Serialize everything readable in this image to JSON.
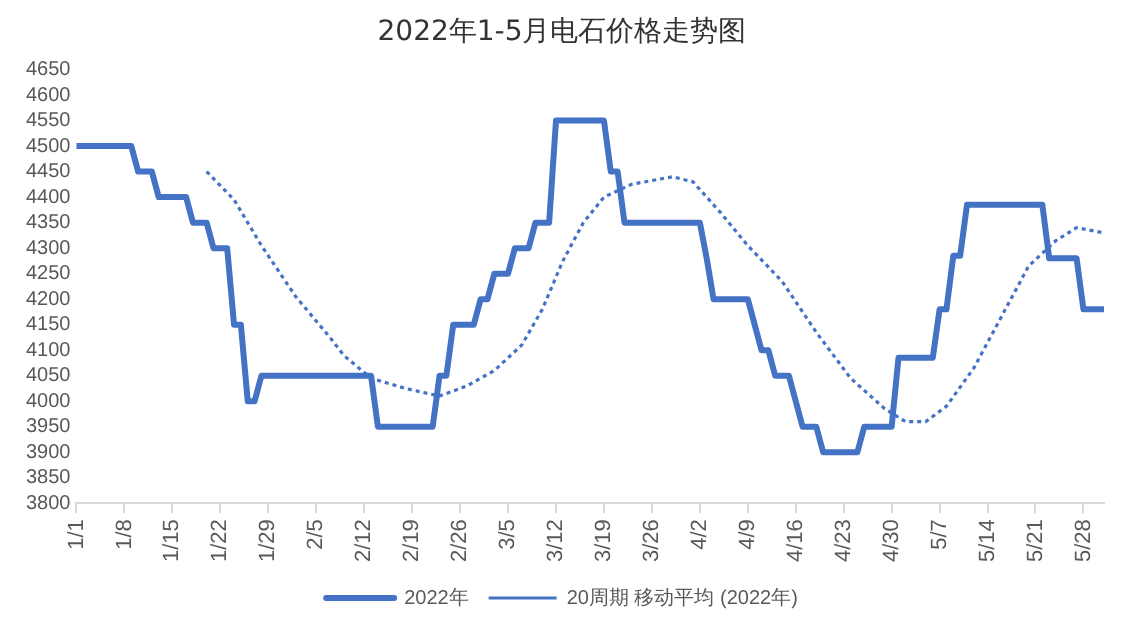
{
  "chart_data": {
    "type": "line",
    "title": "2022年1-5月电石价格走势图",
    "categories": [
      "1/1",
      null,
      null,
      null,
      null,
      null,
      null,
      "1/8",
      null,
      null,
      null,
      null,
      null,
      null,
      "1/15",
      null,
      null,
      null,
      null,
      null,
      null,
      "1/22",
      null,
      null,
      null,
      null,
      null,
      null,
      "1/29",
      null,
      null,
      null,
      null,
      null,
      null,
      "2/5",
      null,
      null,
      null,
      null,
      null,
      null,
      "2/12",
      null,
      null,
      null,
      null,
      null,
      null,
      "2/19",
      null,
      null,
      null,
      null,
      null,
      null,
      "2/26",
      null,
      null,
      null,
      null,
      null,
      null,
      "3/5",
      null,
      null,
      null,
      null,
      null,
      null,
      "3/12",
      null,
      null,
      null,
      null,
      null,
      null,
      "3/19",
      null,
      null,
      null,
      null,
      null,
      null,
      "3/26",
      null,
      null,
      null,
      null,
      null,
      null,
      "4/2",
      null,
      null,
      null,
      null,
      null,
      null,
      "4/9",
      null,
      null,
      null,
      null,
      null,
      null,
      "4/16",
      null,
      null,
      null,
      null,
      null,
      null,
      "4/23",
      null,
      null,
      null,
      null,
      null,
      null,
      "4/30",
      null,
      null,
      null,
      null,
      null,
      null,
      "5/7",
      null,
      null,
      null,
      null,
      null,
      null,
      "5/14",
      null,
      null,
      null,
      null,
      null,
      null,
      "5/21",
      null,
      null,
      null,
      null,
      null,
      null,
      "5/28",
      null,
      null,
      null
    ],
    "series": [
      {
        "name": "2022年",
        "color": "#4472c4",
        "line_style": "solid",
        "values": [
          4500,
          4500,
          4500,
          4500,
          4500,
          4500,
          4500,
          4500,
          4500,
          4450,
          4450,
          4450,
          4400,
          4400,
          4400,
          4400,
          4400,
          4350,
          4350,
          4350,
          4300,
          4300,
          4300,
          4150,
          4150,
          4000,
          4000,
          4050,
          4050,
          4050,
          4050,
          4050,
          4050,
          4050,
          4050,
          4050,
          4050,
          4050,
          4050,
          4050,
          4050,
          4050,
          4050,
          4050,
          3950,
          3950,
          3950,
          3950,
          3950,
          3950,
          3950,
          3950,
          3950,
          4050,
          4050,
          4150,
          4150,
          4150,
          4150,
          4200,
          4200,
          4250,
          4250,
          4250,
          4300,
          4300,
          4300,
          4350,
          4350,
          4350,
          4550,
          4550,
          4550,
          4550,
          4550,
          4550,
          4550,
          4550,
          4450,
          4450,
          4350,
          4350,
          4350,
          4350,
          4350,
          4350,
          4350,
          4350,
          4350,
          4350,
          4350,
          4350,
          4280,
          4200,
          4200,
          4200,
          4200,
          4200,
          4200,
          4150,
          4100,
          4100,
          4050,
          4050,
          4050,
          4000,
          3950,
          3950,
          3950,
          3900,
          3900,
          3900,
          3900,
          3900,
          3900,
          3950,
          3950,
          3950,
          3950,
          3950,
          4085,
          4085,
          4085,
          4085,
          4085,
          4085,
          4180,
          4180,
          4285,
          4285,
          4385,
          4385,
          4385,
          4385,
          4385,
          4385,
          4385,
          4385,
          4385,
          4385,
          4385,
          4385,
          4280,
          4280,
          4280,
          4280,
          4280,
          4180,
          4180,
          4180,
          4180
        ]
      },
      {
        "name": "20周期 移动平均 (2022年)",
        "color": "#4472c4",
        "line_style": "dotted",
        "values": [
          null,
          null,
          null,
          null,
          null,
          null,
          null,
          null,
          null,
          null,
          null,
          null,
          null,
          null,
          null,
          null,
          null,
          null,
          null,
          4450,
          null,
          null,
          null,
          4395,
          null,
          null,
          null,
          4305,
          null,
          null,
          null,
          null,
          4205,
          null,
          null,
          null,
          null,
          4125,
          null,
          4090,
          null,
          null,
          null,
          4045,
          null,
          null,
          null,
          null,
          4025,
          null,
          null,
          null,
          null,
          4010,
          null,
          null,
          null,
          4030,
          null,
          null,
          null,
          4060,
          null,
          null,
          null,
          4110,
          null,
          null,
          4180,
          null,
          null,
          4275,
          null,
          null,
          4350,
          null,
          null,
          4400,
          null,
          null,
          null,
          4425,
          null,
          null,
          null,
          null,
          null,
          4440,
          null,
          null,
          4430,
          null,
          null,
          null,
          4370,
          null,
          null,
          null,
          4305,
          null,
          null,
          null,
          null,
          4235,
          null,
          null,
          null,
          null,
          4135,
          null,
          null,
          null,
          null,
          4045,
          null,
          null,
          null,
          null,
          3985,
          null,
          null,
          3960,
          null,
          null,
          3960,
          null,
          null,
          3990,
          null,
          null,
          null,
          4065,
          null,
          null,
          null,
          4165,
          null,
          null,
          null,
          4265,
          null,
          null,
          null,
          4315,
          null,
          null,
          4340,
          null,
          null,
          null,
          4330
        ]
      }
    ],
    "ylim": [
      3800,
      4650
    ],
    "yticks": [
      3800,
      3850,
      3900,
      3950,
      4000,
      4050,
      4100,
      4150,
      4200,
      4250,
      4300,
      4350,
      4400,
      4450,
      4500,
      4550,
      4600,
      4650
    ],
    "grid": false,
    "legend": "bottom",
    "marker": "none"
  }
}
